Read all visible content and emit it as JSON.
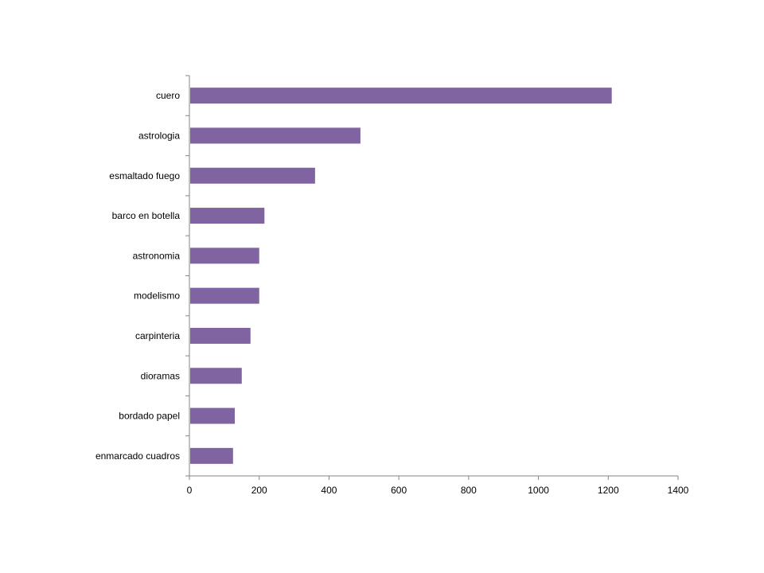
{
  "chart_data": {
    "type": "bar",
    "orientation": "horizontal",
    "title": "",
    "xlabel": "",
    "ylabel": "",
    "categories": [
      "cuero",
      "astrologia",
      "esmaltado fuego",
      "barco en botella",
      "astronomia",
      "modelismo",
      "carpinteria",
      "dioramas",
      "bordado papel",
      "enmarcado cuadros"
    ],
    "values": [
      1210,
      490,
      360,
      215,
      200,
      200,
      175,
      150,
      130,
      125
    ],
    "xlim": [
      0,
      1400
    ],
    "xticks": [
      0,
      200,
      400,
      600,
      800,
      1000,
      1200,
      1400
    ],
    "grid": false,
    "legend": "none",
    "bar_color": "#8064A2",
    "axis_color": "#868686"
  }
}
